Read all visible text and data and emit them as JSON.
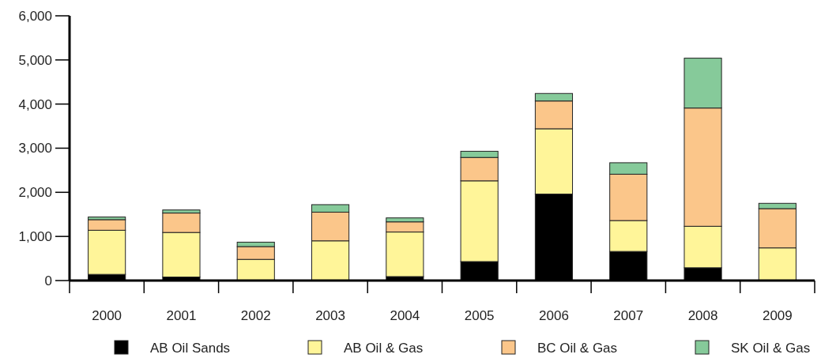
{
  "chart_data": {
    "type": "bar",
    "stacked": true,
    "categories": [
      "2000",
      "2001",
      "2002",
      "2003",
      "2004",
      "2005",
      "2006",
      "2007",
      "2008",
      "2009"
    ],
    "series": [
      {
        "name": "AB Oil Sands",
        "color": "#000000",
        "values": [
          140,
          80,
          null,
          0,
          90,
          430,
          1960,
          660,
          290,
          0
        ]
      },
      {
        "name": "AB Oil & Gas",
        "color": "#fff599",
        "values": [
          1000,
          1010,
          480,
          900,
          1010,
          1830,
          1480,
          700,
          940,
          740
        ]
      },
      {
        "name": "BC Oil & Gas",
        "color": "#fbc68a",
        "values": [
          240,
          440,
          290,
          650,
          230,
          530,
          630,
          1050,
          2680,
          890
        ]
      },
      {
        "name": "SK Oil & Gas",
        "color": "#86ca9a",
        "values": [
          60,
          70,
          100,
          170,
          90,
          140,
          170,
          260,
          1130,
          120
        ]
      }
    ],
    "ylim": [
      0,
      6000
    ],
    "yticks": [
      {
        "value": 0,
        "label": "0"
      },
      {
        "value": 1000,
        "label": "1,000"
      },
      {
        "value": 2000,
        "label": "2,000"
      },
      {
        "value": 3000,
        "label": "3,000"
      },
      {
        "value": 4000,
        "label": "4,000"
      },
      {
        "value": 5000,
        "label": "5,000"
      },
      {
        "value": 6000,
        "label": "6,000"
      }
    ],
    "grid": false,
    "legend": "bottom"
  }
}
